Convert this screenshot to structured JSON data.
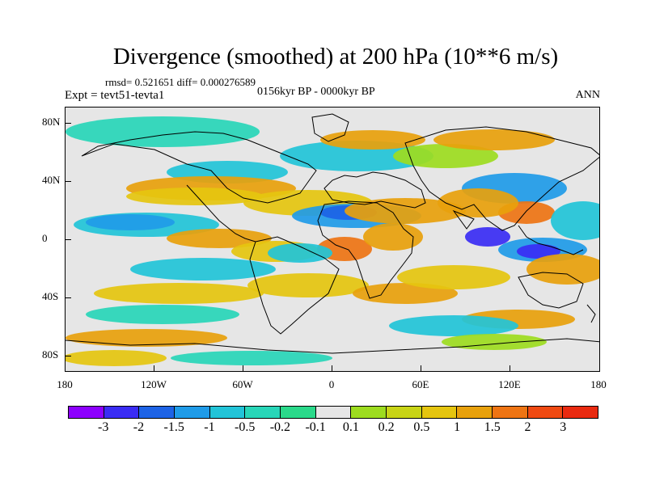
{
  "title": "Divergence (smoothed) at 200 hPa (10**6 m/s)",
  "stats": "rmsd= 0.521651 diff= 0.000276589",
  "period": "0156kyr BP - 0000kyr BP",
  "experiment": "Expt = tevt51-tevta1",
  "season": "ANN",
  "axes": {
    "y_labels": [
      "80N",
      "40N",
      "0",
      "40S",
      "80S"
    ],
    "x_labels": [
      "180",
      "120W",
      "60W",
      "0",
      "60E",
      "120E",
      "180"
    ]
  },
  "colorbar": {
    "colors": [
      "#8d00ff",
      "#3a2cf4",
      "#1d63e6",
      "#1f9be8",
      "#22c4d8",
      "#28d6b8",
      "#2ad98a",
      "#e6e6e6",
      "#9ddc1f",
      "#c8d416",
      "#e5c50f",
      "#e8a10c",
      "#ee7413",
      "#ef4a12",
      "#e92a10"
    ],
    "labels": [
      "-3",
      "-2",
      "-1.5",
      "-1",
      "-0.5",
      "-0.2",
      "-0.1",
      "0.1",
      "0.2",
      "0.5",
      "1",
      "1.5",
      "2",
      "3"
    ]
  },
  "palette": {
    "neutral": "#e6e6e6",
    "cyan_light": "#28d6b8",
    "cyan": "#22c4d8",
    "light_blue": "#1f9be8",
    "blue": "#1d63e6",
    "deep_blue": "#3a2cf4",
    "yellow_green": "#9ddc1f",
    "yellow": "#e5c50f",
    "orange": "#e8a10c",
    "red_orange": "#ee7413",
    "red": "#ef4a12"
  }
}
